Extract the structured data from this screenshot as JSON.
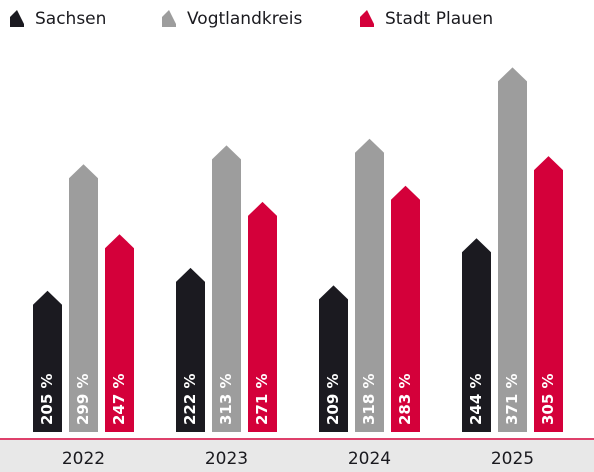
{
  "chart_data": {
    "type": "bar",
    "categories": [
      "2022",
      "2023",
      "2024",
      "2025"
    ],
    "series": [
      {
        "name": "Sachsen",
        "color": "#1b1a20",
        "values": [
          205,
          222,
          209,
          244
        ],
        "value_labels": [
          "205 %",
          "222 %",
          "209 %",
          "244 %"
        ]
      },
      {
        "name": "Vogtlandkreis",
        "color": "#9d9d9d",
        "values": [
          299,
          313,
          318,
          371
        ],
        "value_labels": [
          "299 %",
          "313 %",
          "318 %",
          "371 %"
        ]
      },
      {
        "name": "Stadt Plauen",
        "color": "#d4003a",
        "values": [
          247,
          271,
          283,
          305
        ],
        "value_labels": [
          "247 %",
          "271 %",
          "283 %",
          "305 %"
        ]
      }
    ],
    "ylim": [
      100,
      375
    ],
    "legend": "top"
  }
}
